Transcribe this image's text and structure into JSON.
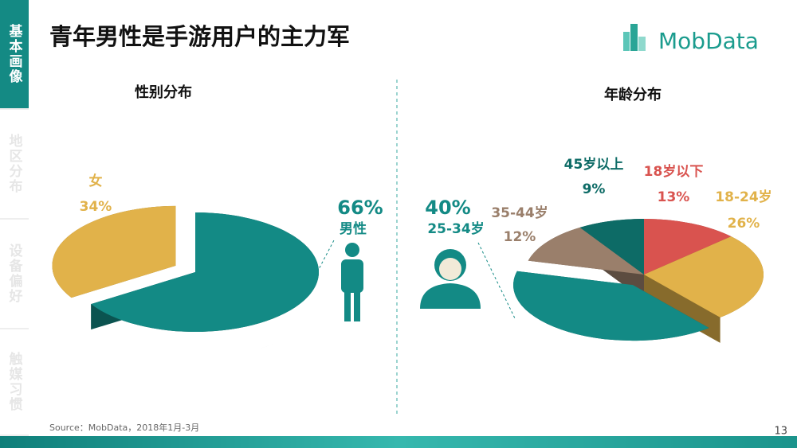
{
  "header": {
    "title": "青年男性是手游用户的主力军",
    "logo": "MobData"
  },
  "sidebar": [
    "基本画像",
    "地区分布",
    "设备偏好",
    "触媒习惯"
  ],
  "footer": {
    "source": "Source：MobData，2018年1月-3月",
    "page": "13"
  },
  "chart_data": [
    {
      "type": "pie",
      "title": "性别分布",
      "categories": [
        "女",
        "男性"
      ],
      "values": [
        34,
        66
      ],
      "value_labels": [
        "34%",
        "66%"
      ],
      "colors": [
        "#e1b24a",
        "#138a85"
      ]
    },
    {
      "type": "pie",
      "title": "年龄分布",
      "categories": [
        "18岁以下",
        "18-24岁",
        "25-34岁",
        "35-44岁",
        "45岁以上"
      ],
      "values": [
        13,
        26,
        40,
        12,
        9
      ],
      "value_labels": [
        "13%",
        "26%",
        "40%",
        "12%",
        "9%"
      ],
      "colors": [
        "#d9534f",
        "#e1b24a",
        "#138a85",
        "#9a7f6b",
        "#0d6b66"
      ]
    }
  ]
}
